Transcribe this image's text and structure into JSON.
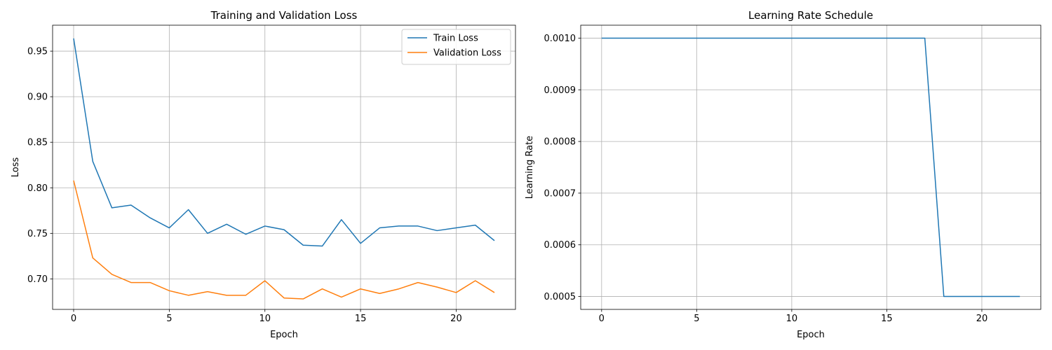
{
  "chart_data": [
    {
      "type": "line",
      "title": "Training and Validation Loss",
      "xlabel": "Epoch",
      "ylabel": "Loss",
      "xlim": [
        -1.1,
        23.1
      ],
      "ylim": [
        0.6665,
        0.9785
      ],
      "xticks": [
        0,
        5,
        10,
        15,
        20
      ],
      "xtick_labels": [
        "0",
        "5",
        "10",
        "15",
        "20"
      ],
      "yticks": [
        0.7,
        0.75,
        0.8,
        0.85,
        0.9,
        0.95
      ],
      "ytick_labels": [
        "0.70",
        "0.75",
        "0.80",
        "0.85",
        "0.90",
        "0.95"
      ],
      "grid": true,
      "legend": "top-right",
      "x": [
        0,
        1,
        2,
        3,
        4,
        5,
        6,
        7,
        8,
        9,
        10,
        11,
        12,
        13,
        14,
        15,
        16,
        17,
        18,
        19,
        20,
        21,
        22
      ],
      "series": [
        {
          "name": "Train Loss",
          "color": "#1f77b4",
          "values": [
            0.964,
            0.829,
            0.778,
            0.781,
            0.767,
            0.756,
            0.776,
            0.75,
            0.76,
            0.749,
            0.758,
            0.754,
            0.737,
            0.736,
            0.765,
            0.739,
            0.756,
            0.758,
            0.758,
            0.753,
            0.756,
            0.759,
            0.742
          ]
        },
        {
          "name": "Validation Loss",
          "color": "#ff7f0e",
          "values": [
            0.808,
            0.723,
            0.705,
            0.696,
            0.696,
            0.687,
            0.682,
            0.686,
            0.682,
            0.682,
            0.698,
            0.679,
            0.678,
            0.689,
            0.68,
            0.689,
            0.684,
            0.689,
            0.696,
            0.691,
            0.685,
            0.698,
            0.685
          ]
        }
      ]
    },
    {
      "type": "line",
      "title": "Learning Rate Schedule",
      "xlabel": "Epoch",
      "ylabel": "Learning Rate",
      "xlim": [
        -1.1,
        23.1
      ],
      "ylim": [
        0.000475,
        0.001025
      ],
      "xticks": [
        0,
        5,
        10,
        15,
        20
      ],
      "xtick_labels": [
        "0",
        "5",
        "10",
        "15",
        "20"
      ],
      "yticks": [
        0.0005,
        0.0006,
        0.0007,
        0.0008,
        0.0009,
        0.001
      ],
      "ytick_labels": [
        "0.0005",
        "0.0006",
        "0.0007",
        "0.0008",
        "0.0009",
        "0.0010"
      ],
      "grid": true,
      "x": [
        0,
        1,
        2,
        3,
        4,
        5,
        6,
        7,
        8,
        9,
        10,
        11,
        12,
        13,
        14,
        15,
        16,
        17,
        18,
        19,
        20,
        21,
        22
      ],
      "series": [
        {
          "color": "#1f77b4",
          "values": [
            0.001,
            0.001,
            0.001,
            0.001,
            0.001,
            0.001,
            0.001,
            0.001,
            0.001,
            0.001,
            0.001,
            0.001,
            0.001,
            0.001,
            0.001,
            0.001,
            0.001,
            0.001,
            0.0005,
            0.0005,
            0.0005,
            0.0005,
            0.0005
          ]
        }
      ]
    }
  ]
}
